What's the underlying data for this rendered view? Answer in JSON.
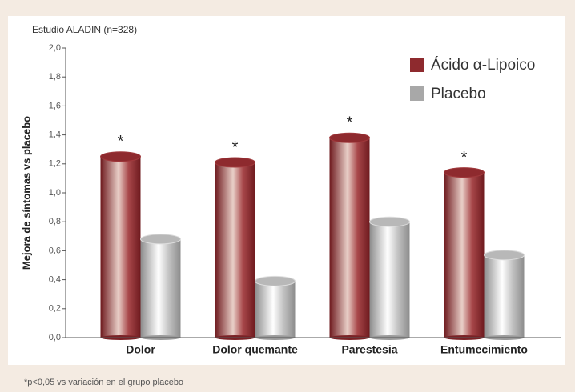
{
  "chart_data": {
    "type": "bar",
    "title": "Estudio ALADIN (n=328)",
    "y_label": "Mejora de síntomas vs placebo",
    "categories": [
      "Dolor",
      "Dolor quemante",
      "Parestesia",
      "Entumecimiento"
    ],
    "series": [
      {
        "name": "Ácido α-Lipoico",
        "color": "#8e2a2e",
        "values": [
          1.25,
          1.21,
          1.38,
          1.14
        ]
      },
      {
        "name": "Placebo",
        "color": "#a8a8a8",
        "values": [
          0.68,
          0.39,
          0.8,
          0.57
        ]
      }
    ],
    "significance": [
      "*",
      "*",
      "*",
      "*"
    ],
    "footnote": "*p<0,05 vs variación en el grupo placebo",
    "ylim": [
      0,
      2
    ],
    "yticks": [
      {
        "value": 0,
        "label": "0,0"
      },
      {
        "value": 0.2,
        "label": "0,2"
      },
      {
        "value": 0.4,
        "label": "0,4"
      },
      {
        "value": 0.6,
        "label": "0,6"
      },
      {
        "value": 0.8,
        "label": "0,8"
      },
      {
        "value": 1,
        "label": "1,0"
      },
      {
        "value": 1.2,
        "label": "1,2"
      },
      {
        "value": 1.4,
        "label": "1,4"
      },
      {
        "value": 1.6,
        "label": "1,6"
      },
      {
        "value": 1.8,
        "label": "1,8"
      },
      {
        "value": 2,
        "label": "2,0"
      }
    ],
    "grid": false,
    "legend": "upper right"
  }
}
